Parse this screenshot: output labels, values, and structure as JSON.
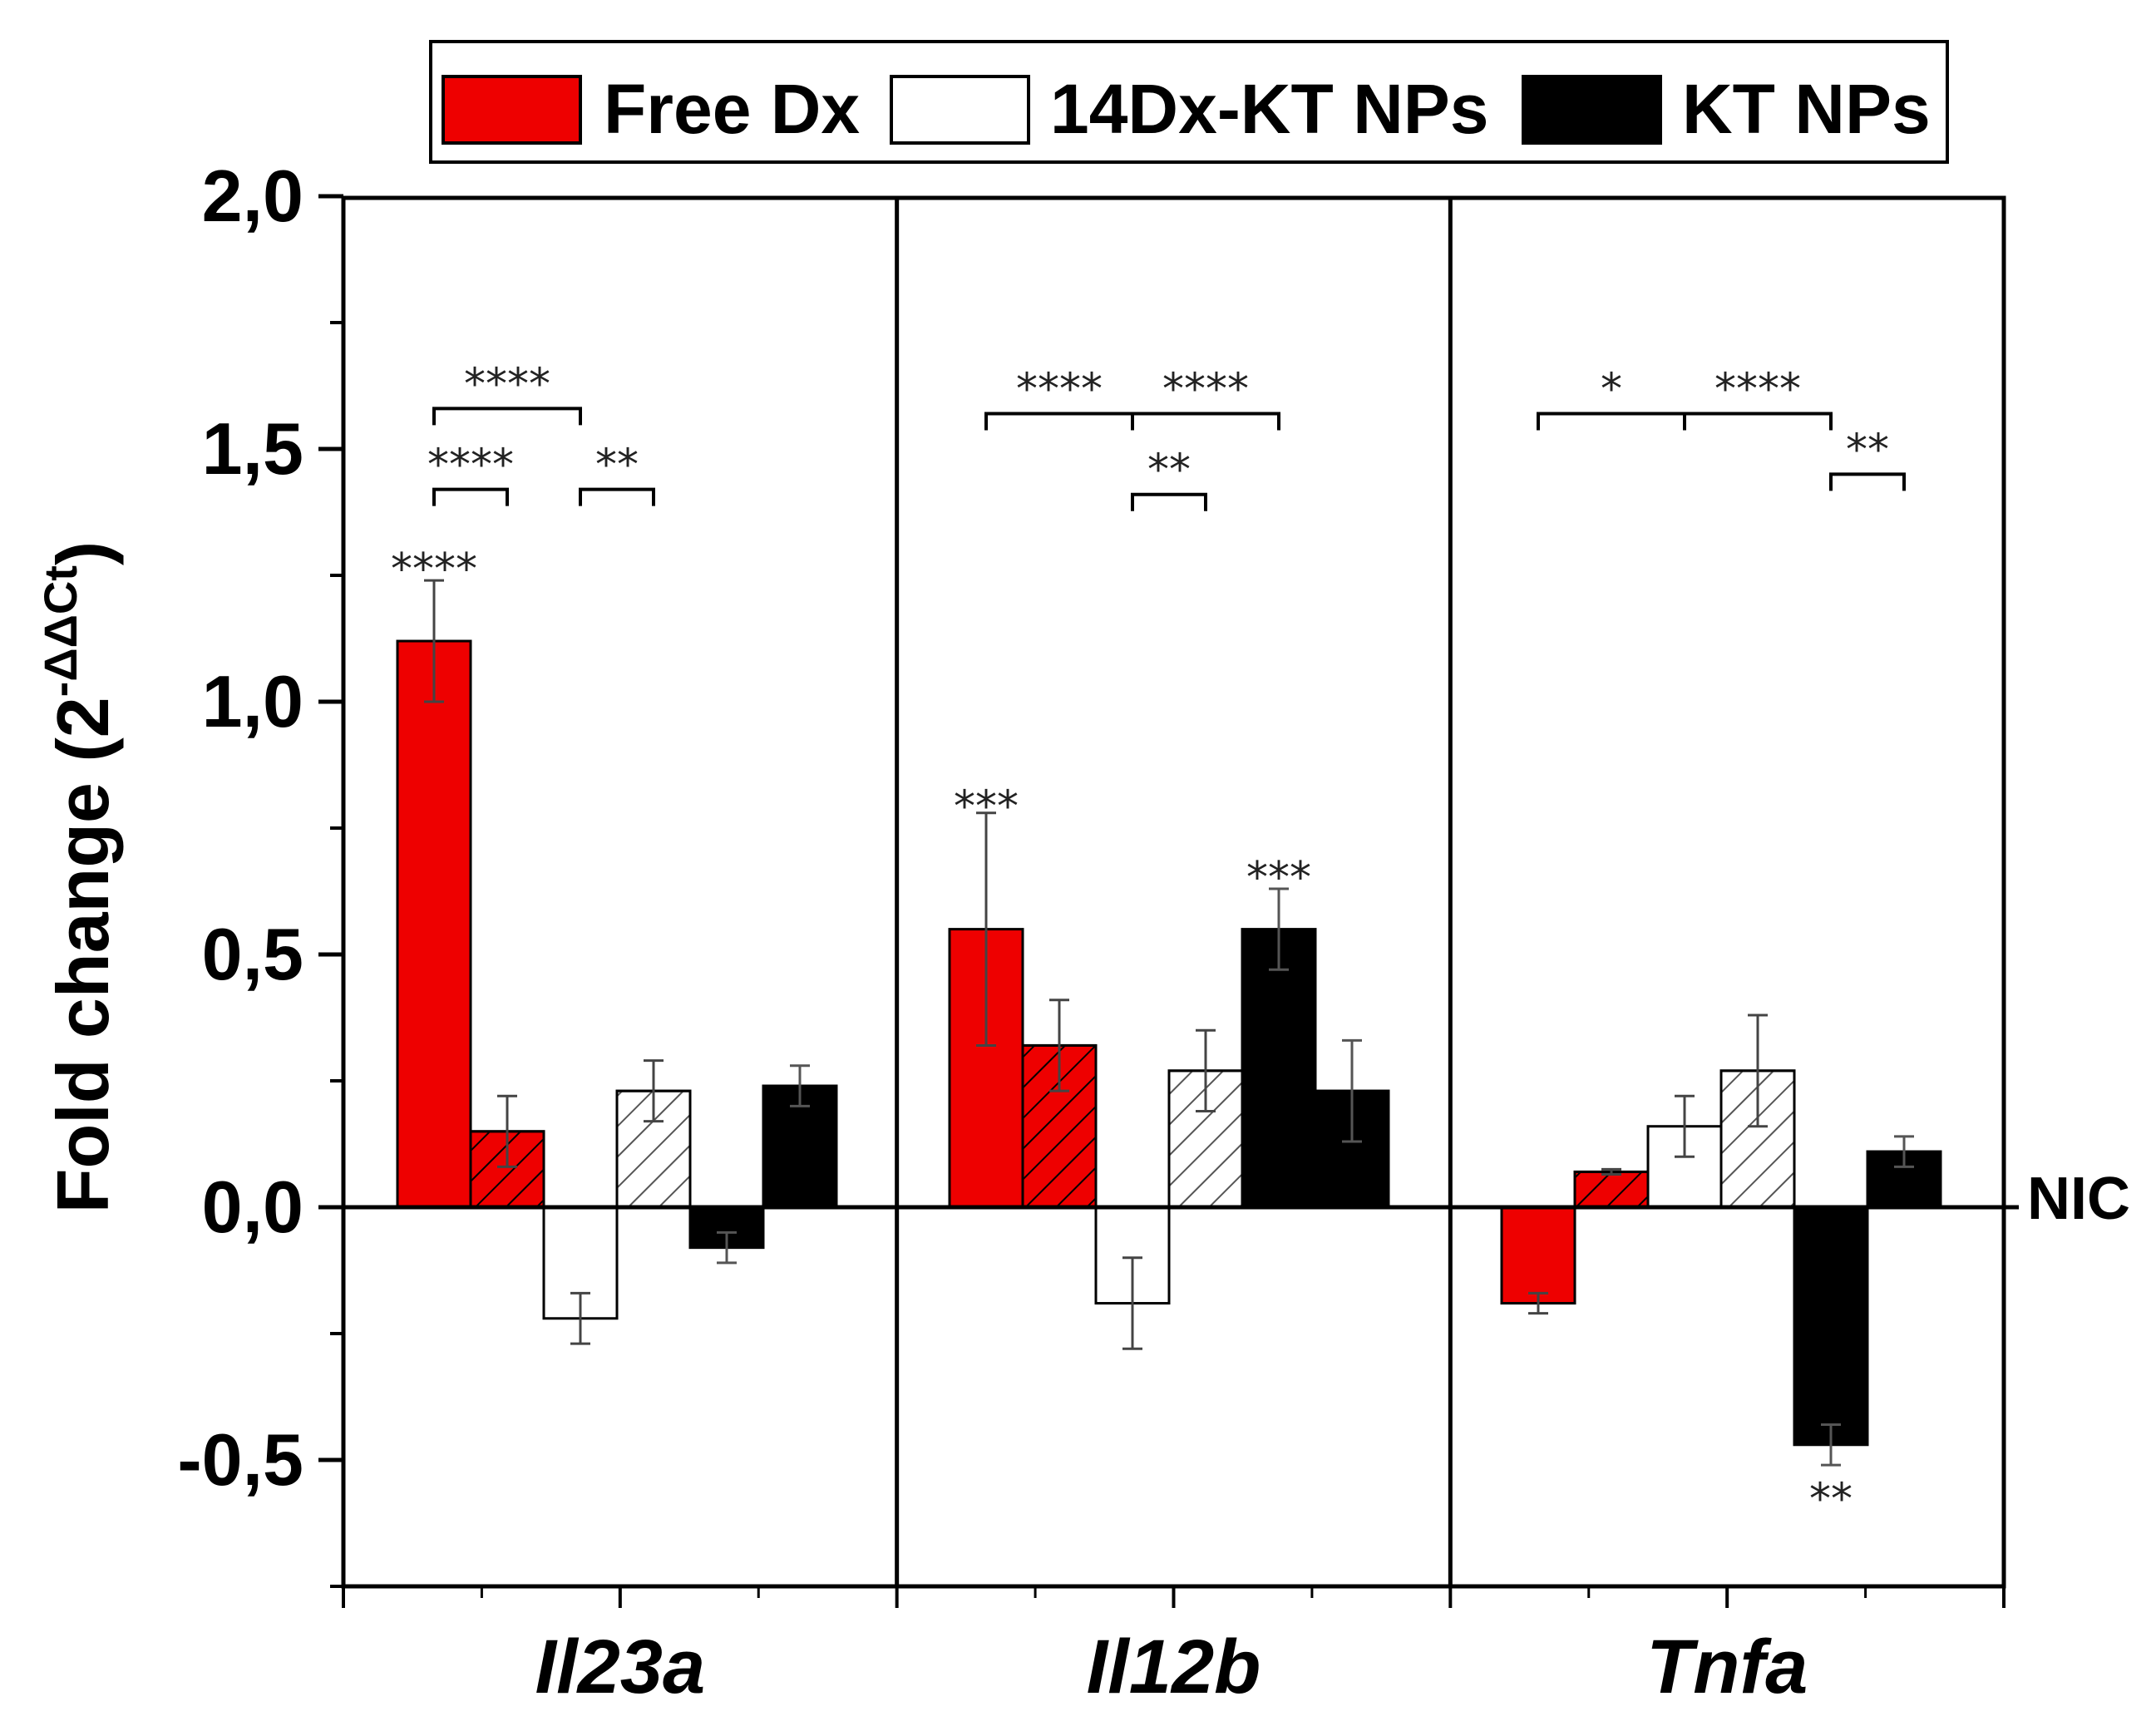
{
  "chart_data": {
    "type": "bar",
    "title": "",
    "xlabel": "",
    "ylabel": "Fold change (2",
    "ylabel_sup": "-ΔΔCt",
    "ylabel_close": ")",
    "ylim": [
      -0.75,
      2.0
    ],
    "yticks": [
      -0.5,
      0.0,
      0.5,
      1.0,
      1.5,
      2.0
    ],
    "ytick_labels": [
      "-0,5",
      "0,0",
      "0,5",
      "1,0",
      "1,5",
      "2,0"
    ],
    "baseline_label": "NIC",
    "categories": [
      "Il23a",
      "Il12b",
      "Tnfa"
    ],
    "legend": [
      "Free Dx",
      "14Dx-KT NPs",
      "KT NPs"
    ],
    "colors": {
      "red": "#ee0000",
      "white": "#ffffff",
      "black": "#000000"
    },
    "series": [
      {
        "name": "Free Dx",
        "fill": "red",
        "hatched": false,
        "values": [
          1.12,
          0.55,
          -0.19
        ],
        "errors": [
          0.12,
          0.23,
          0.02
        ]
      },
      {
        "name": "Free Dx (hatched)",
        "fill": "red",
        "hatched": true,
        "values": [
          0.15,
          0.32,
          0.07
        ],
        "errors": [
          0.07,
          0.09,
          0.005
        ]
      },
      {
        "name": "14Dx-KT NPs",
        "fill": "white",
        "hatched": false,
        "values": [
          -0.22,
          -0.19,
          0.16
        ],
        "errors": [
          0.05,
          0.09,
          0.06
        ]
      },
      {
        "name": "14Dx-KT NPs (hatched)",
        "fill": "white",
        "hatched": true,
        "values": [
          0.23,
          0.27,
          0.27
        ],
        "errors": [
          0.06,
          0.08,
          0.11
        ]
      },
      {
        "name": "KT NPs",
        "fill": "black",
        "hatched": false,
        "values": [
          -0.08,
          0.55,
          -0.47
        ],
        "errors": [
          0.03,
          0.08,
          0.04
        ]
      },
      {
        "name": "KT NPs (hatched)",
        "fill": "black",
        "hatched": true,
        "values": [
          0.24,
          0.23,
          0.11
        ],
        "errors": [
          0.04,
          0.1,
          0.03
        ]
      }
    ],
    "annotations": [
      {
        "group": 0,
        "bar": 0,
        "text": "****",
        "y": 1.26
      },
      {
        "group": 1,
        "bar": 0,
        "text": "***",
        "y": 0.79
      },
      {
        "group": 1,
        "bar": 4,
        "text": "***",
        "y": 0.65
      },
      {
        "group": 2,
        "bar": 4,
        "text": "**",
        "y": -0.58
      }
    ],
    "brackets": [
      {
        "group": 0,
        "from": 0,
        "to": 1,
        "y": 1.42,
        "text": "****"
      },
      {
        "group": 0,
        "from": 2,
        "to": 3,
        "y": 1.42,
        "text": "**"
      },
      {
        "group": 0,
        "from": 0,
        "to": 2,
        "y": 1.58,
        "text": "****"
      },
      {
        "group": 1,
        "from": 0,
        "to": 2,
        "y": 1.57,
        "text": "****"
      },
      {
        "group": 1,
        "from": 2,
        "to": 4,
        "y": 1.57,
        "text": "****"
      },
      {
        "group": 1,
        "from": 2,
        "to": 3,
        "y": 1.41,
        "text": "**"
      },
      {
        "group": 2,
        "from": 0,
        "to": 2,
        "y": 1.57,
        "text": "*"
      },
      {
        "group": 2,
        "from": 2,
        "to": 4,
        "y": 1.57,
        "text": "****"
      },
      {
        "group": 2,
        "from": 4,
        "to": 5,
        "y": 1.45,
        "text": "**"
      }
    ]
  }
}
